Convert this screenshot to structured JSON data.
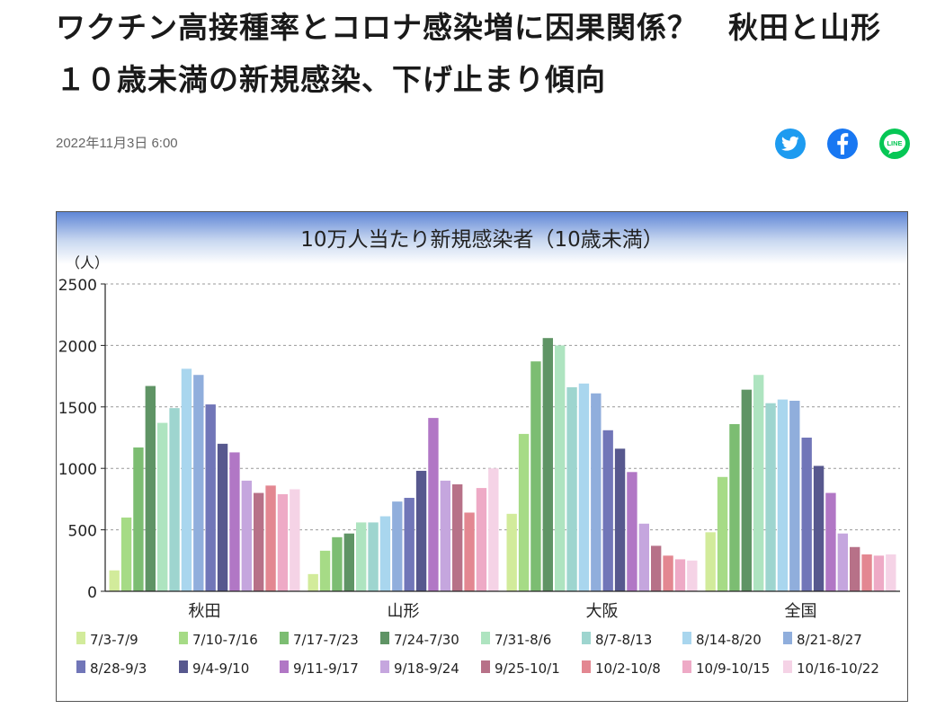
{
  "article": {
    "title": "ワクチン高接種率とコロナ感染増に因果関係？　秋田と山形　１０歳未満の新規感染、下げ止まり傾向",
    "date": "2022年11月3日 6:00"
  },
  "share": [
    {
      "name": "twitter",
      "icon": "twitter-bird-icon",
      "color": "#1d9bf0"
    },
    {
      "name": "facebook",
      "icon": "facebook-f-icon",
      "color": "#1877f2"
    },
    {
      "name": "line",
      "icon": "line-icon",
      "color": "#06c755",
      "label": "LINE"
    }
  ],
  "chart_data": {
    "type": "bar",
    "title": "10万人当たり新規感染者（10歳未満）",
    "ylabel": "（人）",
    "xlabel": "",
    "ylim": [
      0,
      2500
    ],
    "yticks": [
      0,
      500,
      1000,
      1500,
      2000,
      2500
    ],
    "grid": true,
    "legend_position": "bottom",
    "categories": [
      "秋田",
      "山形",
      "大阪",
      "全国"
    ],
    "series": [
      {
        "name": "7/3-7/9",
        "color": "#d2eb9b",
        "values": [
          170,
          140,
          630,
          480
        ]
      },
      {
        "name": "7/10-7/16",
        "color": "#a6db86",
        "values": [
          600,
          330,
          1280,
          930
        ]
      },
      {
        "name": "7/17-7/23",
        "color": "#7cbd72",
        "values": [
          1170,
          440,
          1870,
          1360
        ]
      },
      {
        "name": "7/24-7/30",
        "color": "#5f9465",
        "values": [
          1670,
          470,
          2060,
          1640
        ]
      },
      {
        "name": "7/31-8/6",
        "color": "#aee4c0",
        "values": [
          1370,
          560,
          2000,
          1760
        ]
      },
      {
        "name": "8/7-8/13",
        "color": "#9ed5cf",
        "values": [
          1490,
          560,
          1660,
          1530
        ]
      },
      {
        "name": "8/14-8/20",
        "color": "#a9d6ee",
        "values": [
          1810,
          610,
          1690,
          1560
        ]
      },
      {
        "name": "8/21-8/27",
        "color": "#90aedc",
        "values": [
          1760,
          730,
          1610,
          1550
        ]
      },
      {
        "name": "8/28-9/3",
        "color": "#7176b8",
        "values": [
          1520,
          760,
          1310,
          1250
        ]
      },
      {
        "name": "9/4-9/10",
        "color": "#57588e",
        "values": [
          1200,
          980,
          1160,
          1020
        ]
      },
      {
        "name": "9/11-9/17",
        "color": "#b177c5",
        "values": [
          1130,
          1410,
          970,
          800
        ]
      },
      {
        "name": "9/18-9/24",
        "color": "#c5a6de",
        "values": [
          900,
          900,
          550,
          470
        ]
      },
      {
        "name": "9/25-10/1",
        "color": "#b77188",
        "values": [
          800,
          870,
          370,
          360
        ]
      },
      {
        "name": "10/2-10/8",
        "color": "#e38791",
        "values": [
          860,
          640,
          290,
          300
        ]
      },
      {
        "name": "10/9-10/15",
        "color": "#eeaac6",
        "values": [
          790,
          840,
          260,
          290
        ]
      },
      {
        "name": "10/16-10/22",
        "color": "#f5d3e6",
        "values": [
          830,
          1000,
          250,
          300
        ]
      }
    ]
  }
}
